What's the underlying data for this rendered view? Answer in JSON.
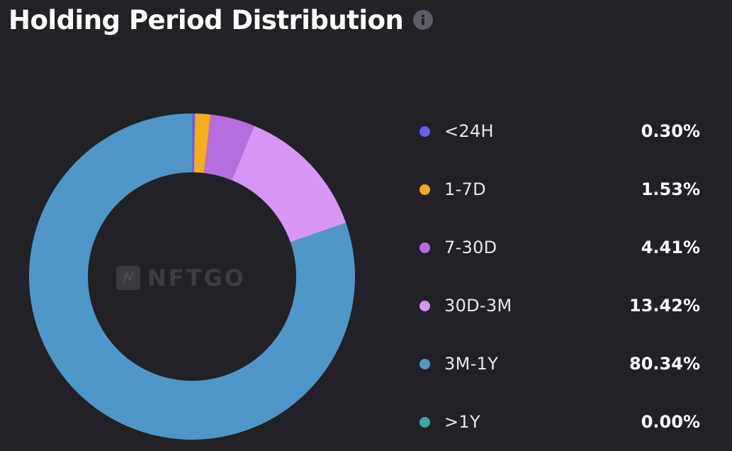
{
  "header": {
    "title": "Holding Period Distribution",
    "info_icon": "info-icon"
  },
  "watermark": {
    "text": "NFTGO",
    "logo_icon": "nftgo-logo-icon"
  },
  "chart_data": {
    "type": "pie",
    "variant": "donut",
    "title": "Holding Period Distribution",
    "legend_position": "right",
    "slices": [
      {
        "label": "<24H",
        "value": 0.3,
        "display": "0.30%",
        "color": "#6a5ef0"
      },
      {
        "label": "1-7D",
        "value": 1.53,
        "display": "1.53%",
        "color": "#f6ac1c"
      },
      {
        "label": "7-30D",
        "value": 4.41,
        "display": "4.41%",
        "color": "#b46ee0"
      },
      {
        "label": "30D-3M",
        "value": 13.42,
        "display": "13.42%",
        "color": "#d596f6"
      },
      {
        "label": "3M-1Y",
        "value": 80.34,
        "display": "80.34%",
        "color": "#4e97c8"
      },
      {
        "label": ">1Y",
        "value": 0.0,
        "display": "0.00%",
        "color": "#3aa7a2"
      }
    ]
  }
}
